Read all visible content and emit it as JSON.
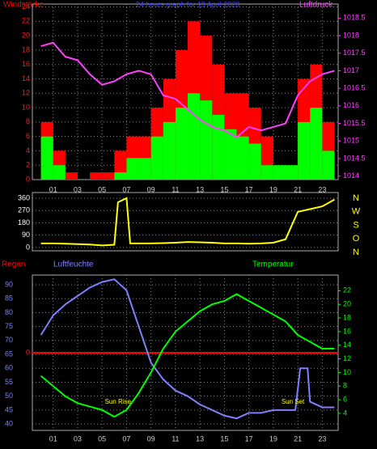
{
  "chart_data": [
    {
      "type": "bar",
      "title": "24 hours graph for 19 April 2020",
      "xlim": [
        -0.7,
        24.3
      ],
      "xticks": [
        {
          "value": 1,
          "label": "01"
        },
        {
          "value": 3,
          "label": "03"
        },
        {
          "value": 5,
          "label": "05"
        },
        {
          "value": 7,
          "label": "07"
        },
        {
          "value": 9,
          "label": "09"
        },
        {
          "value": 11,
          "label": "11"
        },
        {
          "value": 13,
          "label": "13"
        },
        {
          "value": 15,
          "label": "15"
        },
        {
          "value": 17,
          "label": "17"
        },
        {
          "value": 19,
          "label": "19"
        },
        {
          "value": 21,
          "label": "21"
        },
        {
          "value": 23,
          "label": "23"
        }
      ],
      "ylim": [
        0,
        24.4
      ],
      "yticks": [
        0,
        2,
        4,
        6,
        8,
        10,
        12,
        14,
        16,
        18,
        20,
        22,
        24
      ],
      "ycolor": "#ff2020",
      "y2lim": [
        1013.9,
        1018.9
      ],
      "y2ticks": [
        1014,
        1014.5,
        1015,
        1015.5,
        1016,
        1016.5,
        1017,
        1017.5,
        1018,
        1018.5
      ],
      "y2color": "#ff40ff",
      "series": [
        {
          "name": "Windstärke",
          "color": "#ff0000",
          "kind": "bar",
          "x": [
            0,
            1,
            2,
            3,
            4,
            5,
            6,
            7,
            8,
            9,
            10,
            11,
            12,
            13,
            14,
            15,
            16,
            17,
            18,
            19,
            20,
            21,
            22,
            23
          ],
          "values": [
            8,
            4,
            1,
            0,
            1,
            1,
            4,
            6,
            6,
            10,
            14,
            18,
            22,
            20,
            16,
            12,
            12,
            10,
            6,
            0,
            0,
            14,
            16,
            8
          ]
        },
        {
          "color": "#00ff00",
          "kind": "bar",
          "x": [
            0,
            1,
            2,
            3,
            4,
            5,
            6,
            7,
            8,
            9,
            10,
            11,
            12,
            13,
            14,
            15,
            16,
            17,
            18,
            19,
            20,
            21,
            22,
            23
          ],
          "values": [
            6,
            2,
            0,
            0,
            0,
            0,
            1,
            3,
            3,
            6,
            8,
            10,
            12,
            11,
            9,
            7,
            6,
            5,
            2,
            2,
            2,
            8,
            10,
            4
          ]
        },
        {
          "name": "Luftdruck",
          "color": "#ff40ff",
          "kind": "line",
          "axis": "y2",
          "x": [
            0,
            1,
            2,
            3,
            4,
            5,
            6,
            7,
            8,
            9,
            10,
            11,
            12,
            13,
            14,
            15,
            16,
            17,
            18,
            19,
            20,
            21,
            22,
            23,
            24
          ],
          "values": [
            1017.7,
            1017.8,
            1017.4,
            1017.3,
            1016.9,
            1016.6,
            1016.7,
            1016.9,
            1017.0,
            1016.9,
            1016.3,
            1016.2,
            1015.9,
            1015.6,
            1015.4,
            1015.3,
            1015.1,
            1015.4,
            1015.3,
            1015.4,
            1015.5,
            1016.3,
            1016.7,
            1016.9,
            1017.0
          ]
        }
      ]
    },
    {
      "type": "line",
      "xlim": [
        -0.7,
        24.3
      ],
      "ylim": [
        -24,
        401
      ],
      "yticks": [
        0,
        90,
        180,
        270,
        360
      ],
      "ycolor": "#ffffff",
      "direction_labels": [
        "N",
        "W",
        "S",
        "O",
        "N"
      ],
      "series": [
        {
          "color": "#ffff00",
          "kind": "line",
          "x": [
            0,
            1,
            2,
            3,
            4,
            5,
            6,
            6.3,
            7,
            7.3,
            8,
            9,
            10,
            11,
            12,
            13,
            14,
            15,
            16,
            17,
            18,
            19,
            20,
            21,
            22,
            23,
            24
          ],
          "values": [
            30,
            30,
            28,
            25,
            22,
            15,
            20,
            330,
            360,
            30,
            30,
            30,
            32,
            35,
            40,
            38,
            35,
            30,
            30,
            28,
            30,
            35,
            60,
            260,
            280,
            300,
            350
          ]
        }
      ]
    },
    {
      "type": "line",
      "xlim": [
        -0.7,
        24.3
      ],
      "xticks": [
        {
          "value": 1,
          "label": "01"
        },
        {
          "value": 3,
          "label": "03"
        },
        {
          "value": 5,
          "label": "05"
        },
        {
          "value": 7,
          "label": "07"
        },
        {
          "value": 9,
          "label": "09"
        },
        {
          "value": 11,
          "label": "11"
        },
        {
          "value": 13,
          "label": "13"
        },
        {
          "value": 15,
          "label": "15"
        },
        {
          "value": 17,
          "label": "17"
        },
        {
          "value": 19,
          "label": "19"
        },
        {
          "value": 21,
          "label": "21"
        },
        {
          "value": 23,
          "label": "23"
        }
      ],
      "ylim": [
        37.7,
        93.5
      ],
      "yticks": [
        40,
        45,
        50,
        55,
        60,
        65,
        70,
        75,
        80,
        85,
        90
      ],
      "ycolor": "#8080ff",
      "y2lim": [
        1.5,
        24.3
      ],
      "y2ticks": [
        4,
        6,
        8,
        10,
        12,
        14,
        16,
        18,
        20,
        22
      ],
      "y2color": "#00ff00",
      "y3lim": [
        -1,
        1
      ],
      "y3ticks": [
        0
      ],
      "y3color": "#ff2020",
      "annotations": [
        {
          "x": 6.3,
          "text": "Sun Rise"
        },
        {
          "x": 20.6,
          "text": "Sun Set"
        }
      ],
      "series": [
        {
          "name": "Regen",
          "color": "#ff0000",
          "kind": "line",
          "axis": "y3",
          "x": [
            -0.7,
            24.3
          ],
          "values": [
            0,
            0
          ]
        },
        {
          "name": "Luftfeuchte",
          "color": "#8080ff",
          "kind": "line",
          "x": [
            0,
            1,
            2,
            3,
            4,
            5,
            6,
            7,
            8,
            9,
            10,
            11,
            12,
            13,
            14,
            15,
            16,
            17,
            18,
            19,
            20,
            20.8,
            21.2,
            21.8,
            22,
            23,
            24
          ],
          "values": [
            72,
            79,
            83,
            86,
            89,
            91,
            92,
            88,
            75,
            62,
            56,
            52,
            50,
            47,
            45,
            43,
            42,
            44,
            44,
            45,
            45,
            45,
            60,
            60,
            48,
            46,
            46
          ]
        },
        {
          "name": "Temperatur",
          "color": "#00ff00",
          "kind": "line",
          "axis": "y2",
          "x": [
            0,
            1,
            2,
            3,
            4,
            5,
            6,
            7,
            8,
            9,
            10,
            11,
            12,
            13,
            14,
            15,
            16,
            17,
            18,
            19,
            20,
            21,
            22,
            23,
            24
          ],
          "values": [
            9.5,
            8,
            6.5,
            5.5,
            5,
            4.5,
            3.5,
            4.5,
            7,
            10,
            13.5,
            16,
            17.5,
            19,
            20,
            20.5,
            21.5,
            20.5,
            19.5,
            18.5,
            17.5,
            15.5,
            14.5,
            13.5,
            13.5
          ]
        }
      ]
    }
  ]
}
